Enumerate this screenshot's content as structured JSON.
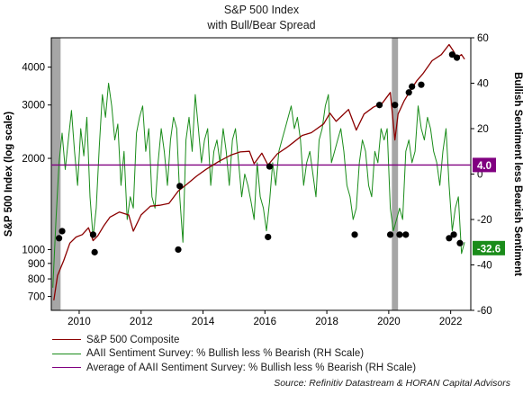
{
  "chart_data": {
    "type": "line",
    "title": "S&P 500 Index",
    "subtitle": "with Bull/Bear Spread",
    "ylabel_left": "S&P 500 Index (log scale)",
    "ylabel_right": "Bullish Sentiment less Bearish Sentiment",
    "x_ticks": [
      "2010",
      "2012",
      "2014",
      "2016",
      "2018",
      "2020",
      "2022"
    ],
    "x_range": [
      2009.1,
      2022.65
    ],
    "y_left_scale": "log",
    "y_left_range": [
      630,
      5000
    ],
    "y_left_ticks": [
      700,
      800,
      900,
      1000,
      2000,
      3000,
      4000
    ],
    "y_right_range": [
      -60,
      60
    ],
    "y_right_ticks": [
      -60,
      -40,
      -20,
      0,
      20,
      40,
      60
    ],
    "grid": false,
    "legend_position": "bottom-left",
    "recession_shading": [
      [
        2009.1,
        2009.4
      ],
      [
        2020.1,
        2020.3
      ]
    ],
    "series": [
      {
        "name": "S&P 500 Composite",
        "axis": "left",
        "color": "#8b0000",
        "x": [
          2009.18,
          2009.3,
          2009.5,
          2009.7,
          2009.9,
          2010.1,
          2010.3,
          2010.45,
          2010.6,
          2010.8,
          2011.0,
          2011.3,
          2011.6,
          2011.75,
          2012.0,
          2012.3,
          2012.6,
          2012.9,
          2013.2,
          2013.5,
          2013.8,
          2014.1,
          2014.5,
          2014.9,
          2015.2,
          2015.5,
          2015.65,
          2015.9,
          2016.1,
          2016.4,
          2016.7,
          2016.9,
          2017.2,
          2017.5,
          2017.9,
          2018.1,
          2018.3,
          2018.7,
          2018.95,
          2019.2,
          2019.5,
          2019.8,
          2020.05,
          2020.2,
          2020.3,
          2020.5,
          2020.7,
          2020.9,
          2021.1,
          2021.4,
          2021.7,
          2021.95,
          2022.1,
          2022.2,
          2022.35,
          2022.45
        ],
        "values": [
          680,
          820,
          920,
          1050,
          1100,
          1120,
          1180,
          1070,
          1110,
          1200,
          1280,
          1330,
          1300,
          1150,
          1300,
          1390,
          1400,
          1420,
          1560,
          1650,
          1750,
          1840,
          1950,
          2050,
          2100,
          2110,
          1920,
          2080,
          1900,
          2070,
          2170,
          2250,
          2380,
          2430,
          2600,
          2820,
          2650,
          2900,
          2480,
          2800,
          2950,
          3050,
          3300,
          2300,
          2800,
          3100,
          3350,
          3600,
          3800,
          4200,
          4400,
          4750,
          4500,
          4300,
          4400,
          4250
        ]
      },
      {
        "name": "AAII Sentiment Survey: % Bullish less % Bearish (RH Scale)",
        "axis": "right",
        "color": "#1a8c1a",
        "x": [
          2009.15,
          2009.25,
          2009.35,
          2009.45,
          2009.55,
          2009.65,
          2009.75,
          2009.85,
          2009.95,
          2010.05,
          2010.15,
          2010.25,
          2010.35,
          2010.45,
          2010.55,
          2010.65,
          2010.75,
          2010.85,
          2010.95,
          2011.05,
          2011.15,
          2011.25,
          2011.35,
          2011.45,
          2011.55,
          2011.65,
          2011.75,
          2011.85,
          2011.95,
          2012.05,
          2012.15,
          2012.25,
          2012.35,
          2012.45,
          2012.55,
          2012.65,
          2012.75,
          2012.85,
          2012.95,
          2013.05,
          2013.15,
          2013.25,
          2013.35,
          2013.45,
          2013.55,
          2013.65,
          2013.75,
          2013.85,
          2013.95,
          2014.05,
          2014.15,
          2014.25,
          2014.35,
          2014.45,
          2014.55,
          2014.65,
          2014.75,
          2014.85,
          2014.95,
          2015.05,
          2015.15,
          2015.25,
          2015.35,
          2015.45,
          2015.55,
          2015.65,
          2015.75,
          2015.85,
          2015.95,
          2016.05,
          2016.15,
          2016.25,
          2016.35,
          2016.45,
          2016.55,
          2016.65,
          2016.75,
          2016.85,
          2016.95,
          2017.05,
          2017.15,
          2017.25,
          2017.35,
          2017.45,
          2017.55,
          2017.65,
          2017.75,
          2017.85,
          2017.95,
          2018.05,
          2018.15,
          2018.25,
          2018.35,
          2018.45,
          2018.55,
          2018.65,
          2018.75,
          2018.85,
          2018.95,
          2019.05,
          2019.15,
          2019.25,
          2019.35,
          2019.45,
          2019.55,
          2019.65,
          2019.75,
          2019.85,
          2019.95,
          2020.05,
          2020.15,
          2020.25,
          2020.35,
          2020.45,
          2020.55,
          2020.65,
          2020.75,
          2020.85,
          2020.95,
          2021.05,
          2021.15,
          2021.25,
          2021.35,
          2021.45,
          2021.55,
          2021.65,
          2021.75,
          2021.85,
          2021.95,
          2022.05,
          2022.15,
          2022.25,
          2022.35,
          2022.45
        ],
        "values": [
          -50,
          -20,
          5,
          18,
          2,
          15,
          28,
          10,
          -5,
          20,
          8,
          25,
          -10,
          -28,
          -15,
          12,
          35,
          25,
          40,
          30,
          15,
          22,
          -5,
          10,
          -20,
          -10,
          -15,
          18,
          25,
          30,
          10,
          20,
          -10,
          -15,
          5,
          20,
          10,
          -5,
          15,
          25,
          20,
          -10,
          -30,
          15,
          25,
          10,
          35,
          20,
          5,
          15,
          20,
          -5,
          10,
          15,
          5,
          20,
          10,
          -5,
          15,
          20,
          5,
          -10,
          0,
          -5,
          -12,
          -20,
          5,
          -10,
          -15,
          -25,
          -12,
          5,
          -5,
          10,
          15,
          20,
          25,
          30,
          20,
          25,
          15,
          -5,
          5,
          10,
          0,
          -10,
          15,
          20,
          30,
          35,
          5,
          10,
          15,
          20,
          10,
          -5,
          -10,
          -20,
          -15,
          5,
          15,
          10,
          -5,
          -10,
          10,
          5,
          20,
          15,
          20,
          -15,
          -25,
          -20,
          -15,
          -20,
          10,
          15,
          5,
          10,
          30,
          20,
          15,
          25,
          20,
          10,
          5,
          -5,
          10,
          20,
          -5,
          -25,
          -15,
          -10,
          -35,
          -30
        ]
      },
      {
        "name": "Average of AAII Sentiment Survey: % Bullish less % Bearish (RH Scale)",
        "axis": "right",
        "color": "#800080",
        "x": [
          2009.1,
          2022.65
        ],
        "values": [
          4.0,
          4.0
        ]
      }
    ],
    "extreme_markers": {
      "axis": "left",
      "color": "#000000",
      "x": [
        2009.35,
        2009.45,
        2010.45,
        2010.5,
        2013.2,
        2013.25,
        2016.1,
        2016.15,
        2018.9,
        2019.7,
        2020.05,
        2020.2,
        2020.35,
        2020.55,
        2020.65,
        2020.75,
        2021.05,
        2021.95,
        2022.05,
        2022.1,
        2022.2,
        2022.3
      ],
      "values": [
        1090,
        1150,
        1120,
        980,
        1000,
        1620,
        1100,
        1880,
        1120,
        3000,
        1120,
        3000,
        1120,
        1120,
        3300,
        3450,
        3500,
        1090,
        4400,
        1120,
        4300,
        1050
      ]
    },
    "callouts": [
      {
        "value": "4.0",
        "axis": "right",
        "y": 4.0,
        "color": "#800080"
      },
      {
        "value": "-32.6",
        "axis": "right",
        "y": -32.6,
        "color": "#1a8c1a"
      }
    ]
  },
  "legend": {
    "items": [
      {
        "label": "S&P 500 Composite",
        "color": "#8b0000"
      },
      {
        "label": "AAII Sentiment Survey: % Bullish less % Bearish (RH Scale)",
        "color": "#1a8c1a"
      },
      {
        "label": "Average of AAII Sentiment Survey: % Bullish less % Bearish (RH Scale)",
        "color": "#800080"
      }
    ]
  },
  "source": "Source: Refinitiv Datastream & HORAN Capital Advisors"
}
